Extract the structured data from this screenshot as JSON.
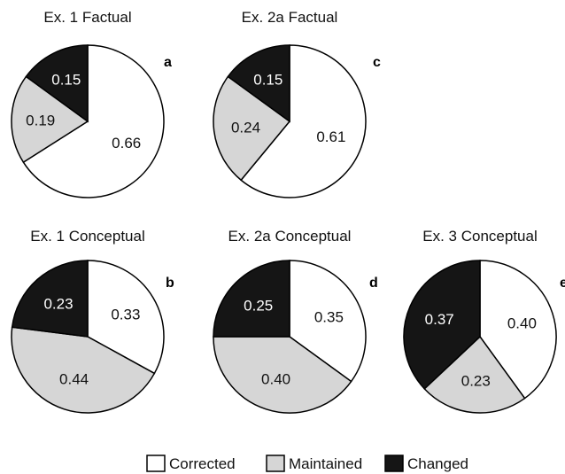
{
  "chart_data": [
    {
      "type": "pie",
      "title": "Ex. 1 Factual",
      "panel": "a",
      "categories": [
        "Corrected",
        "Maintained",
        "Changed"
      ],
      "values": [
        0.66,
        0.19,
        0.15
      ]
    },
    {
      "type": "pie",
      "title": "Ex. 2a Factual",
      "panel": "c",
      "categories": [
        "Corrected",
        "Maintained",
        "Changed"
      ],
      "values": [
        0.61,
        0.24,
        0.15
      ]
    },
    {
      "type": "pie",
      "title": "Ex. 1 Conceptual",
      "panel": "b",
      "categories": [
        "Corrected",
        "Maintained",
        "Changed"
      ],
      "values": [
        0.33,
        0.44,
        0.23
      ]
    },
    {
      "type": "pie",
      "title": "Ex. 2a Conceptual",
      "panel": "d",
      "categories": [
        "Corrected",
        "Maintained",
        "Changed"
      ],
      "values": [
        0.35,
        0.4,
        0.25
      ]
    },
    {
      "type": "pie",
      "title": "Ex. 3 Conceptual",
      "panel": "e",
      "categories": [
        "Corrected",
        "Maintained",
        "Changed"
      ],
      "values": [
        0.4,
        0.23,
        0.37
      ]
    }
  ],
  "legend": {
    "placement": "bottom-center",
    "items": [
      {
        "label": "Corrected",
        "color": "#ffffff"
      },
      {
        "label": "Maintained",
        "color": "#d6d6d6"
      },
      {
        "label": "Changed",
        "color": "#151515"
      }
    ]
  },
  "colors": {
    "Corrected": "#ffffff",
    "Maintained": "#d6d6d6",
    "Changed": "#151515",
    "label_on_light": "#111111",
    "label_on_dark": "#ffffff"
  }
}
